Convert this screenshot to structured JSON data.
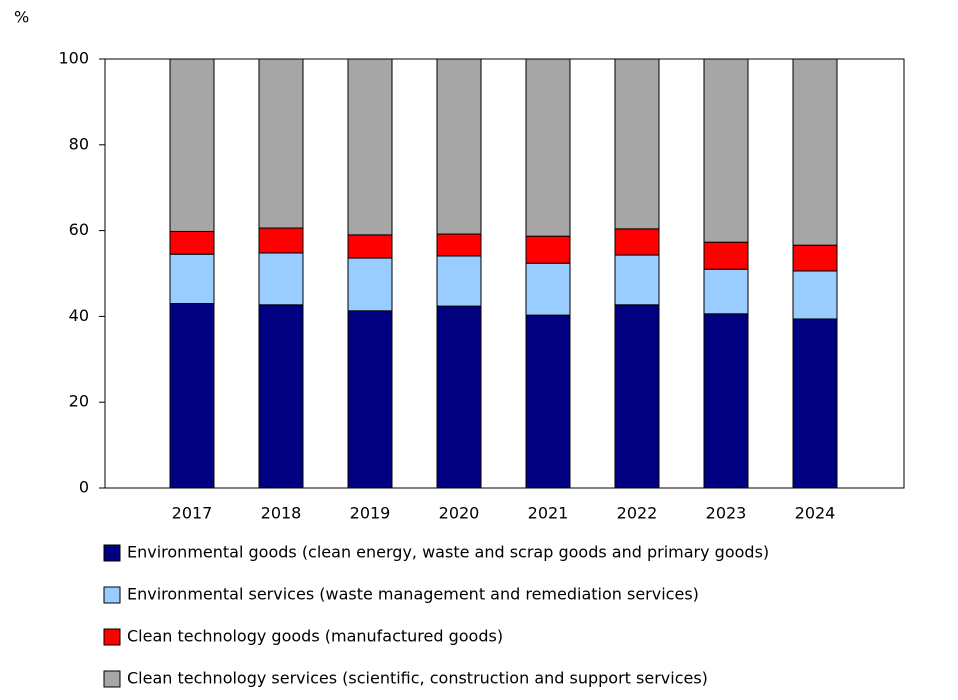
{
  "chart_data": {
    "type": "stacked-bar",
    "y_label": "%",
    "categories": [
      "2017",
      "2018",
      "2019",
      "2020",
      "2021",
      "2022",
      "2023",
      "2024"
    ],
    "series": [
      {
        "name": "Environmental goods (clean energy, waste and scrap goods and primary goods)",
        "color": "#000080",
        "values": [
          43.0,
          42.7,
          41.3,
          42.4,
          40.3,
          42.7,
          40.6,
          39.4
        ]
      },
      {
        "name": "Environmental services (waste management and remediation services)",
        "color": "#99ccff",
        "values": [
          11.5,
          12.1,
          12.3,
          11.7,
          12.1,
          11.6,
          10.4,
          11.2
        ]
      },
      {
        "name": "Clean technology goods (manufactured goods)",
        "color": "#ff0000",
        "values": [
          5.3,
          5.8,
          5.4,
          5.1,
          6.3,
          6.1,
          6.3,
          6.0
        ]
      },
      {
        "name": "Clean technology services (scientific, construction and support services)",
        "color": "#a6a6a6",
        "values": [
          40.2,
          39.4,
          41.0,
          40.8,
          41.3,
          39.6,
          42.7,
          43.4
        ]
      }
    ],
    "ylim": [
      0,
      100
    ],
    "yticks": [
      0,
      20,
      40,
      60,
      80,
      100
    ]
  }
}
